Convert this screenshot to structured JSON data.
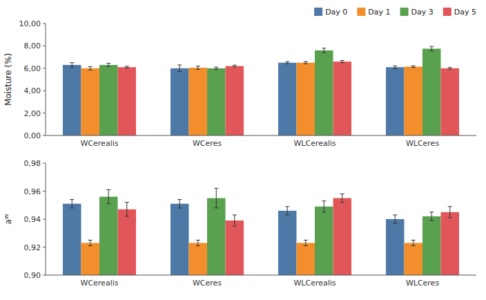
{
  "chart_data": [
    {
      "type": "bar",
      "categories": [
        "WCerealis",
        "WCeres",
        "WLCerealis",
        "WLCeres"
      ],
      "series": [
        {
          "name": "Day 0",
          "values": [
            6.3,
            6.0,
            6.5,
            6.1
          ],
          "errors": [
            0.2,
            0.3,
            0.1,
            0.12
          ]
        },
        {
          "name": "Day 1",
          "values": [
            6.0,
            6.05,
            6.5,
            6.15
          ],
          "errors": [
            0.15,
            0.15,
            0.1,
            0.08
          ]
        },
        {
          "name": "Day 3",
          "values": [
            6.3,
            6.0,
            7.6,
            7.75
          ],
          "errors": [
            0.15,
            0.1,
            0.2,
            0.2
          ]
        },
        {
          "name": "Day 5",
          "values": [
            6.1,
            6.2,
            6.6,
            6.0
          ],
          "errors": [
            0.08,
            0.08,
            0.1,
            0.07
          ]
        }
      ],
      "ylabel": "Moisture (%)",
      "ylim": [
        0,
        10.0
      ],
      "yticks": [
        {
          "value": 0.0,
          "label": "0,00"
        },
        {
          "value": 2.0,
          "label": "2,00"
        },
        {
          "value": 4.0,
          "label": "4,00"
        },
        {
          "value": 6.0,
          "label": "6,00"
        },
        {
          "value": 8.0,
          "label": "8,00"
        },
        {
          "value": 10.0,
          "label": "10,00"
        }
      ],
      "grid": false,
      "legend": "upper right"
    },
    {
      "type": "bar",
      "categories": [
        "WCerealis",
        "WCeres",
        "WLCerealis",
        "WLCeres"
      ],
      "series": [
        {
          "name": "Day 0",
          "values": [
            0.951,
            0.951,
            0.946,
            0.94
          ],
          "errors": [
            0.003,
            0.003,
            0.003,
            0.003
          ]
        },
        {
          "name": "Day 1",
          "values": [
            0.923,
            0.923,
            0.923,
            0.923
          ],
          "errors": [
            0.002,
            0.002,
            0.002,
            0.002
          ]
        },
        {
          "name": "Day 3",
          "values": [
            0.956,
            0.955,
            0.949,
            0.942
          ],
          "errors": [
            0.005,
            0.007,
            0.004,
            0.003
          ]
        },
        {
          "name": "Day 5",
          "values": [
            0.947,
            0.939,
            0.955,
            0.945
          ],
          "errors": [
            0.005,
            0.004,
            0.003,
            0.004
          ]
        }
      ],
      "ylabel": "aᵂ",
      "ylim": [
        0.9,
        0.98
      ],
      "yticks": [
        {
          "value": 0.9,
          "label": "0,90"
        },
        {
          "value": 0.92,
          "label": "0,92"
        },
        {
          "value": 0.94,
          "label": "0,94"
        },
        {
          "value": 0.96,
          "label": "0,96"
        },
        {
          "value": 0.98,
          "label": "0,98"
        }
      ],
      "grid": false
    }
  ]
}
